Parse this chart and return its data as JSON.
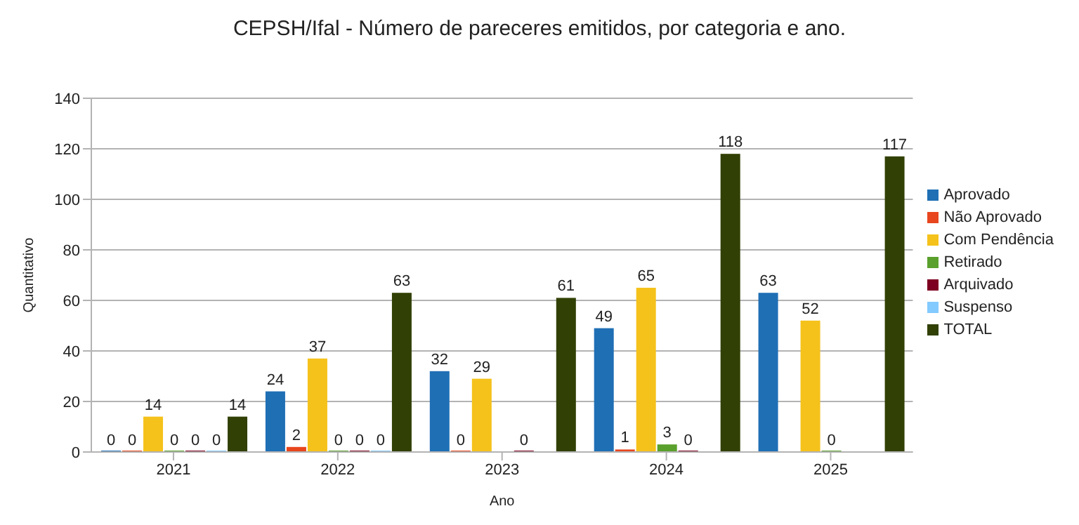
{
  "chart_data": {
    "type": "bar",
    "title": "CEPSH/Ifal - Número de pareceres emitidos, por categoria e ano.",
    "xlabel": "Ano",
    "ylabel": "Quantitativo",
    "categories": [
      "2021",
      "2022",
      "2023",
      "2024",
      "2025"
    ],
    "series": [
      {
        "name": "Aprovado",
        "color": "#1f6fb5",
        "values": [
          0,
          24,
          32,
          49,
          63
        ]
      },
      {
        "name": "Não Aprovado",
        "color": "#e8461e",
        "values": [
          0,
          2,
          0,
          1,
          null
        ]
      },
      {
        "name": "Com Pendência",
        "color": "#f5c21b",
        "values": [
          14,
          37,
          29,
          65,
          52
        ]
      },
      {
        "name": "Retirado",
        "color": "#5aa02c",
        "values": [
          0,
          0,
          null,
          3,
          0
        ]
      },
      {
        "name": "Arquivado",
        "color": "#7e0021",
        "values": [
          0,
          0,
          0,
          0,
          null
        ]
      },
      {
        "name": "Suspenso",
        "color": "#83caff",
        "values": [
          0,
          0,
          null,
          null,
          null
        ]
      },
      {
        "name": "TOTAL",
        "color": "#314004",
        "values": [
          14,
          63,
          61,
          118,
          117
        ]
      }
    ],
    "ylim": [
      0,
      140
    ],
    "yticks": [
      0,
      20,
      40,
      60,
      80,
      100,
      120,
      140
    ],
    "grid": "y",
    "legend": "right",
    "data_labels": true
  }
}
